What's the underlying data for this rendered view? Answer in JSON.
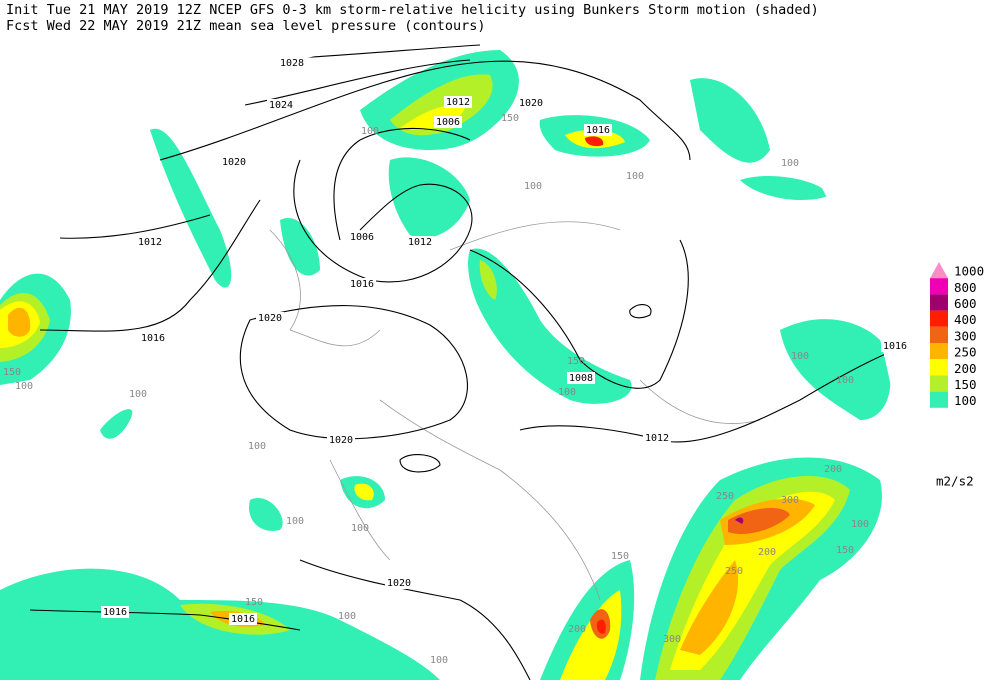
{
  "header": {
    "line1": "Init  Tue 21 MAY 2019 12Z  NCEP GFS 0-3 km storm-relative helicity using Bunkers Storm motion (shaded)",
    "line2": "Fcst Wed 22 MAY 2019 21Z  mean sea level pressure (contours)"
  },
  "contour_labels": [
    "1028",
    "1024",
    "1020",
    "1012",
    "1016",
    "1020",
    "1020",
    "1016",
    "1006",
    "1012",
    "1006",
    "1012",
    "1020",
    "1016",
    "1008",
    "1012",
    "1020",
    "1016",
    "1016",
    "1016"
  ],
  "shade_labels": [
    "100",
    "150",
    "200",
    "300",
    "250",
    "200",
    "250",
    "200",
    "300",
    "150",
    "100",
    "100",
    "100",
    "100",
    "150",
    "100",
    "150",
    "100",
    "150",
    "100",
    "100",
    "100",
    "100",
    "100",
    "100",
    "100",
    "150",
    "100"
  ],
  "legend": {
    "levels": [
      {
        "label": "1000",
        "color": "#ff8cc8"
      },
      {
        "label": "800",
        "color": "#f000b4"
      },
      {
        "label": "600",
        "color": "#a0006e"
      },
      {
        "label": "400",
        "color": "#ff1e00"
      },
      {
        "label": "300",
        "color": "#f06414"
      },
      {
        "label": "250",
        "color": "#ffb400"
      },
      {
        "label": "200",
        "color": "#ffff00"
      },
      {
        "label": "150",
        "color": "#b4f028"
      },
      {
        "label": "100",
        "color": "#32f0b4"
      }
    ],
    "unit": "m2/s2"
  }
}
